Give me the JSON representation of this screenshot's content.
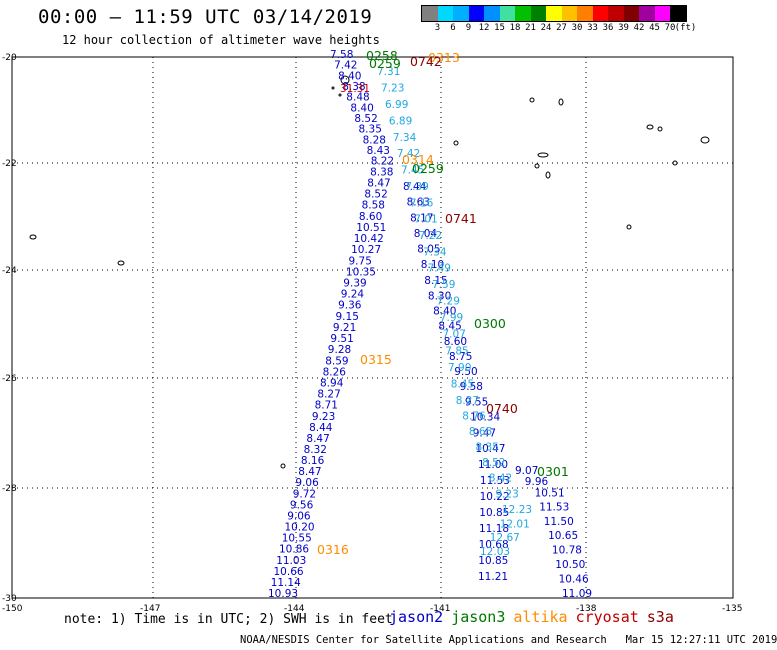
{
  "header": {
    "title": "00:00 — 11:59 UTC 03/14/2019",
    "subtitle": "12 hour collection of altimeter wave heights"
  },
  "colorbar": {
    "colors": [
      "#808080",
      "#00d8ff",
      "#00b0ff",
      "#0000ff",
      "#0090ff",
      "#40e0a0",
      "#00c000",
      "#008000",
      "#ffff00",
      "#ffc000",
      "#ff8000",
      "#ff0000",
      "#c00000",
      "#800000",
      "#a000a0",
      "#ff00ff",
      "#000000"
    ],
    "labels": [
      "3",
      "6",
      "9",
      "12",
      "15",
      "18",
      "21",
      "24",
      "27",
      "30",
      "33",
      "36",
      "39",
      "42",
      "45",
      "70",
      "(ft)"
    ]
  },
  "axes": {
    "lat_labels": [
      "-20",
      "-22",
      "-24",
      "-26",
      "-28",
      "-30"
    ],
    "lon_labels": [
      "-150",
      "-147",
      "-144",
      "-141",
      "-138",
      "-135"
    ]
  },
  "colors": {
    "jason2": "#0000c8",
    "jason3": "#007800",
    "altika": "#ff8c00",
    "cryosat": "#c00000",
    "s3a": "#8b0000",
    "light": "#20a8e0"
  },
  "time_labels": [
    {
      "text": "0258",
      "sat": "jason3"
    },
    {
      "text": "0313",
      "sat": "altika"
    },
    {
      "text": "0259",
      "sat": "jason3"
    },
    {
      "text": "0742",
      "sat": "s3a"
    },
    {
      "text": "0314",
      "sat": "altika"
    },
    {
      "text": "0259",
      "sat": "jason3"
    },
    {
      "text": "0741",
      "sat": "s3a"
    },
    {
      "text": "0300",
      "sat": "jason3"
    },
    {
      "text": "0315",
      "sat": "altika"
    },
    {
      "text": "0740",
      "sat": "s3a"
    },
    {
      "text": "0301",
      "sat": "jason3"
    },
    {
      "text": "0316",
      "sat": "altika"
    }
  ],
  "track_west": [
    "7.58",
    "7.42",
    "8.40",
    "8.38",
    "8.48",
    "8.40",
    "8.52",
    "8.35",
    "8.28",
    "8.43",
    "8.22",
    "8.38",
    "8.47",
    "8.52",
    "8.58",
    "8.60",
    "10.51",
    "10.42",
    "10.27",
    "9.75",
    "10.35",
    "9.39",
    "9.24",
    "9.36",
    "9.15",
    "9.21",
    "9.51",
    "9.28",
    "8.59",
    "8.26",
    "8.94",
    "8.27",
    "8.71",
    "9.23",
    "8.44",
    "8.47",
    "8.32",
    "8.16",
    "8.47",
    "9.06",
    "9.72",
    "9.56",
    "9.06",
    "10.20",
    "10.55",
    "10.86",
    "11.03",
    "10.66",
    "11.14",
    "10.93"
  ],
  "track_east_dark": [
    "8.44",
    "8.63",
    "8.17",
    "8.04",
    "8.05",
    "8.10",
    "8.15",
    "8.30",
    "8.40",
    "8.45",
    "8.60",
    "8.75",
    "9.50",
    "9.58",
    "9.55",
    "10.34",
    "9.47",
    "10.47",
    "11.00",
    "11.53",
    "10.22",
    "10.85",
    "11.18",
    "10.68",
    "10.85",
    "11.21"
  ],
  "track_east_light": [
    "7.31",
    "7.23",
    "6.99",
    "6.89",
    "7.34",
    "7.42",
    "7.45",
    "7.39",
    "7.16",
    "7.01",
    "7.22",
    "7.34",
    "7.49",
    "7.59",
    "7.29",
    "7.99",
    "7.07",
    "7.85",
    "7.90",
    "8.45",
    "8.27",
    "8.76",
    "8.65",
    "8.35",
    "8.52",
    "8.42",
    "9.23",
    "12.23",
    "12.01",
    "12.67",
    "12.03"
  ],
  "track_far_east": [
    "9.07",
    "9.96",
    "10.51",
    "11.53",
    "11.50",
    "10.65",
    "10.78",
    "10.50",
    "10.46",
    "11.09"
  ],
  "cryosat_value": "31.31",
  "note": "note: 1) Time is in UTC; 2) SWH is in feet",
  "legend": [
    {
      "text": "jason2",
      "sat": "jason2"
    },
    {
      "text": "jason3",
      "sat": "jason3"
    },
    {
      "text": "altika",
      "sat": "altika"
    },
    {
      "text": "cryosat",
      "sat": "cryosat"
    },
    {
      "text": "s3a",
      "sat": "s3a"
    }
  ],
  "footer": "NOAA/NESDIS Center for Satellite Applications and Research   Mar 15 12:27:11 UTC 2019"
}
